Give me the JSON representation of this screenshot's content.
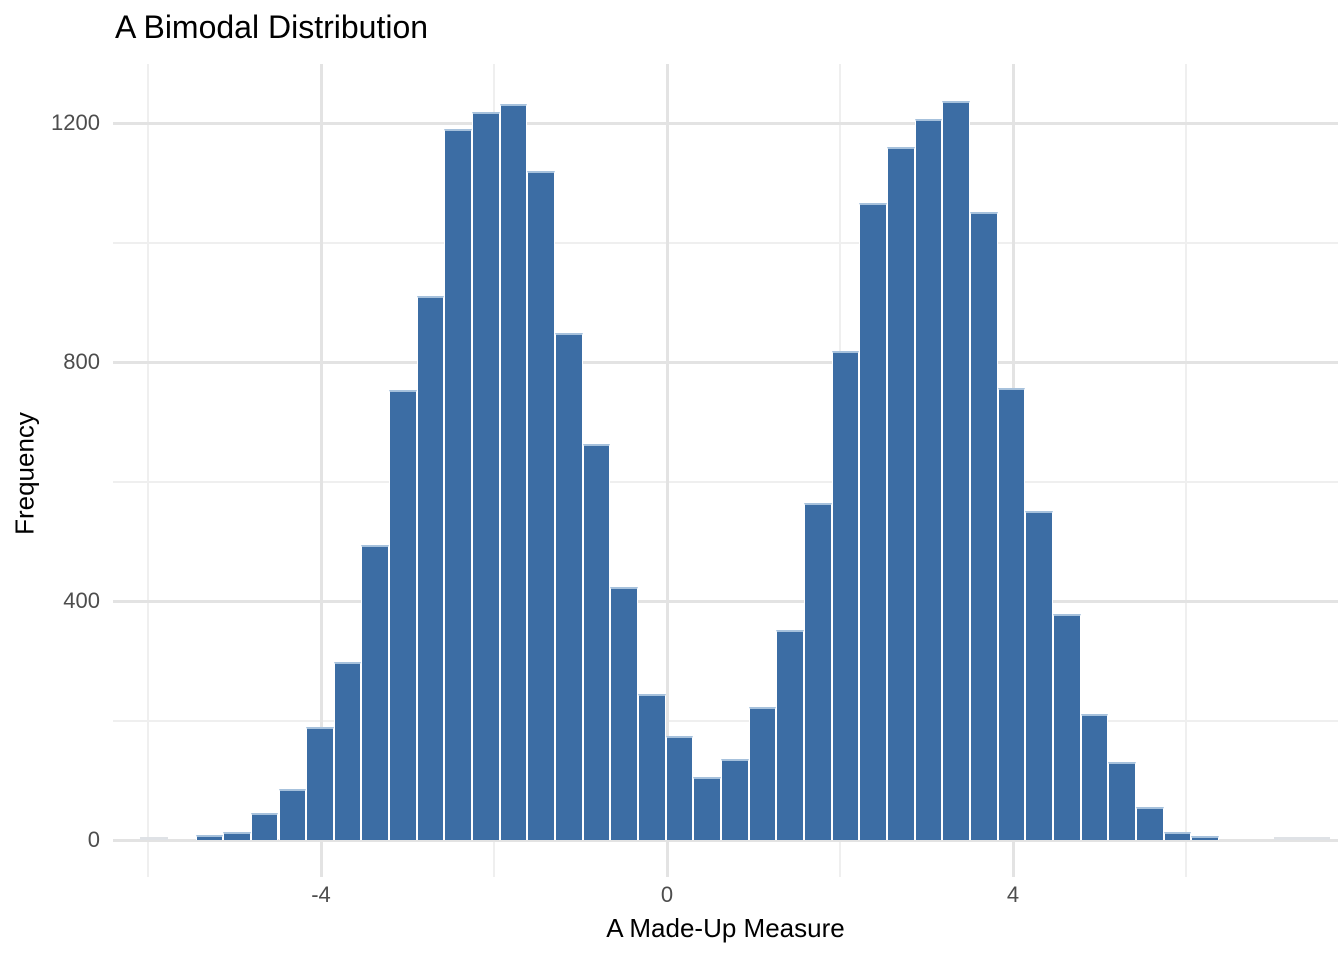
{
  "chart_data": {
    "type": "bar",
    "subtype": "histogram",
    "title": "A Bimodal Distribution",
    "xlabel": "A Made-Up Measure",
    "ylabel": "Frequency",
    "grid": true,
    "legend": false,
    "xlim": [
      -6.4,
      7.8
    ],
    "ylim": [
      0,
      1300
    ],
    "bin_width": 0.32,
    "bin_centers": [
      -5.93,
      -5.61,
      -5.29,
      -4.97,
      -4.65,
      -4.33,
      -4.01,
      -3.69,
      -3.37,
      -3.05,
      -2.73,
      -2.41,
      -2.09,
      -1.77,
      -1.45,
      -1.13,
      -0.81,
      -0.49,
      -0.17,
      0.15,
      0.47,
      0.79,
      1.11,
      1.43,
      1.75,
      2.07,
      2.39,
      2.71,
      3.03,
      3.35,
      3.67,
      3.99,
      4.31,
      4.63,
      4.95,
      5.27,
      5.59,
      5.91,
      6.23,
      6.55,
      6.87,
      7.19,
      7.51
    ],
    "counts": [
      2,
      0,
      8,
      13,
      45,
      85,
      189,
      298,
      494,
      753,
      910,
      1190,
      1218,
      1232,
      1120,
      848,
      663,
      423,
      244,
      174,
      105,
      136,
      223,
      351,
      564,
      818,
      1066,
      1160,
      1207,
      1237,
      1051,
      757,
      550,
      378,
      211,
      131,
      55,
      13,
      7,
      0,
      0,
      2,
      2
    ],
    "x_ticks": [
      {
        "value": -4,
        "label": "-4"
      },
      {
        "value": 0,
        "label": "0"
      },
      {
        "value": 4,
        "label": "4"
      }
    ],
    "x_minor_gridlines": [
      -6,
      -2,
      2,
      6
    ],
    "y_ticks": [
      {
        "value": 0,
        "label": "0"
      },
      {
        "value": 400,
        "label": "400"
      },
      {
        "value": 800,
        "label": "800"
      },
      {
        "value": 1200,
        "label": "1200"
      }
    ],
    "y_minor_gridlines": [
      200,
      600,
      1000
    ],
    "colors": {
      "bar_fill": "#3c6da4",
      "bar_edge": "#a6c1dc",
      "tiny_bar": "#dfe2e6",
      "grid_major": "#e3e3e3",
      "grid_minor": "#efefef",
      "tick_label": "#4d4d4d",
      "text": "#000000",
      "background": "#ffffff"
    }
  }
}
